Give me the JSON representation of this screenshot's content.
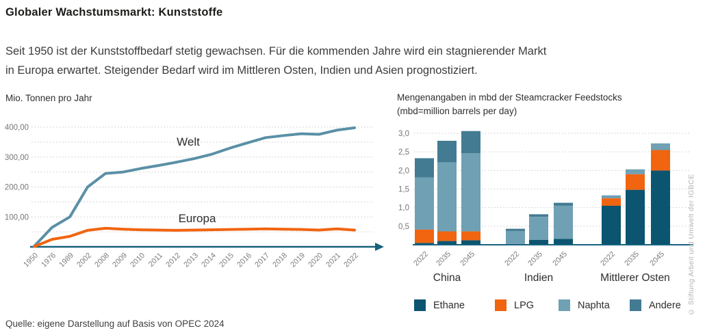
{
  "page": {
    "title": "Globaler Wachstumsmarkt: Kunststoffe",
    "subtitle_line1": "Seit 1950 ist der Kunststoffbedarf stetig gewachsen. Für die kommenden Jahre wird ein stagnierender Markt",
    "subtitle_line2": "in Europa erwartet. Steigender Bedarf wird im Mittleren Osten, Indien und Asien prognostiziert.",
    "source": "Quelle: eigene Darstellung auf Basis von OPEC 2024",
    "copyright": "© Stiftung Arbeit und Umwelt der IGBCE"
  },
  "colors": {
    "axis": "#16617d",
    "grid": "#c9c9c9",
    "welt_line": "#5a90a6",
    "europa_line": "#f16410",
    "ethane": "#0b5570",
    "lpg": "#f16410",
    "naphta": "#70a0b3",
    "andere": "#437b92"
  },
  "chart_data": [
    {
      "type": "line",
      "title": "Mio. Tonnen pro Jahr",
      "x_categories": [
        "1950",
        "1976",
        "1989",
        "2002",
        "2008",
        "2009",
        "2010",
        "2011",
        "2012",
        "2013",
        "2014",
        "2015",
        "2016",
        "2017",
        "2018",
        "2019",
        "2020",
        "2021",
        "2022"
      ],
      "ylim": [
        0,
        420
      ],
      "grid_step": 50,
      "grid_on": true,
      "axis_color": "#16617d",
      "yticks": [
        {
          "value": 100,
          "label": "100,00"
        },
        {
          "value": 200,
          "label": "200,00"
        },
        {
          "value": 300,
          "label": "300,00"
        },
        {
          "value": 400,
          "label": "400,00"
        }
      ],
      "series": [
        {
          "name": "Welt",
          "color": "#5a90a6",
          "values": [
            2,
            65,
            100,
            200,
            245,
            250,
            262,
            272,
            283,
            295,
            310,
            330,
            348,
            365,
            372,
            378,
            376,
            390,
            398
          ],
          "label_pos": {
            "x": 275,
            "y": 55
          }
        },
        {
          "name": "Europa",
          "color": "#f16410",
          "values": [
            1,
            25,
            35,
            55,
            62,
            59,
            57,
            56,
            55,
            56,
            57,
            58,
            59,
            60,
            59,
            58,
            56,
            60,
            56
          ],
          "label_pos": {
            "x": 288,
            "y": 167
          }
        }
      ]
    },
    {
      "type": "stacked_bar",
      "title_line1": "Mengenangaben in mbd der Steamcracker Feedstocks",
      "title_line2": "(mbd=million barrels per day)",
      "ylim": [
        0,
        3.2
      ],
      "grid_on": true,
      "axis_color": "#16617d",
      "yticks": [
        {
          "value": 0.5,
          "label": "0,5"
        },
        {
          "value": 1.0,
          "label": "1,0"
        },
        {
          "value": 1.5,
          "label": "1,5"
        },
        {
          "value": 2.0,
          "label": "2,0"
        },
        {
          "value": 2.5,
          "label": "2,5"
        },
        {
          "value": 3.0,
          "label": "3,0"
        }
      ],
      "segments_order": [
        "Ethane",
        "LPG",
        "Naphta",
        "Andere"
      ],
      "legend": [
        {
          "label": "Ethane",
          "color": "#0b5570"
        },
        {
          "label": "LPG",
          "color": "#f16410"
        },
        {
          "label": "Naphta",
          "color": "#70a0b3"
        },
        {
          "label": "Andere",
          "color": "#437b92"
        }
      ],
      "legend_position": "bottom",
      "groups": [
        {
          "name": "China",
          "bars": [
            {
              "year": "2022",
              "values": {
                "Ethane": 0.05,
                "LPG": 0.36,
                "Naphta": 1.4,
                "Andere": 0.52
              }
            },
            {
              "year": "2035",
              "values": {
                "Ethane": 0.1,
                "LPG": 0.26,
                "Naphta": 1.86,
                "Andere": 0.58
              }
            },
            {
              "year": "2045",
              "values": {
                "Ethane": 0.12,
                "LPG": 0.24,
                "Naphta": 2.1,
                "Andere": 0.6
              }
            }
          ]
        },
        {
          "name": "Indien",
          "bars": [
            {
              "year": "2022",
              "values": {
                "Ethane": 0.02,
                "LPG": 0,
                "Naphta": 0.35,
                "Andere": 0.06
              }
            },
            {
              "year": "2035",
              "values": {
                "Ethane": 0.13,
                "LPG": 0,
                "Naphta": 0.62,
                "Andere": 0.07
              }
            },
            {
              "year": "2045",
              "values": {
                "Ethane": 0.16,
                "LPG": 0,
                "Naphta": 0.89,
                "Andere": 0.08
              }
            }
          ]
        },
        {
          "name": "Mittlerer Osten",
          "bars": [
            {
              "year": "2022",
              "values": {
                "Ethane": 1.05,
                "LPG": 0.2,
                "Naphta": 0.08,
                "Andere": 0
              }
            },
            {
              "year": "2035",
              "values": {
                "Ethane": 1.48,
                "LPG": 0.42,
                "Naphta": 0.13,
                "Andere": 0
              }
            },
            {
              "year": "2045",
              "values": {
                "Ethane": 2.0,
                "LPG": 0.55,
                "Naphta": 0.18,
                "Andere": 0
              }
            }
          ]
        }
      ]
    }
  ]
}
